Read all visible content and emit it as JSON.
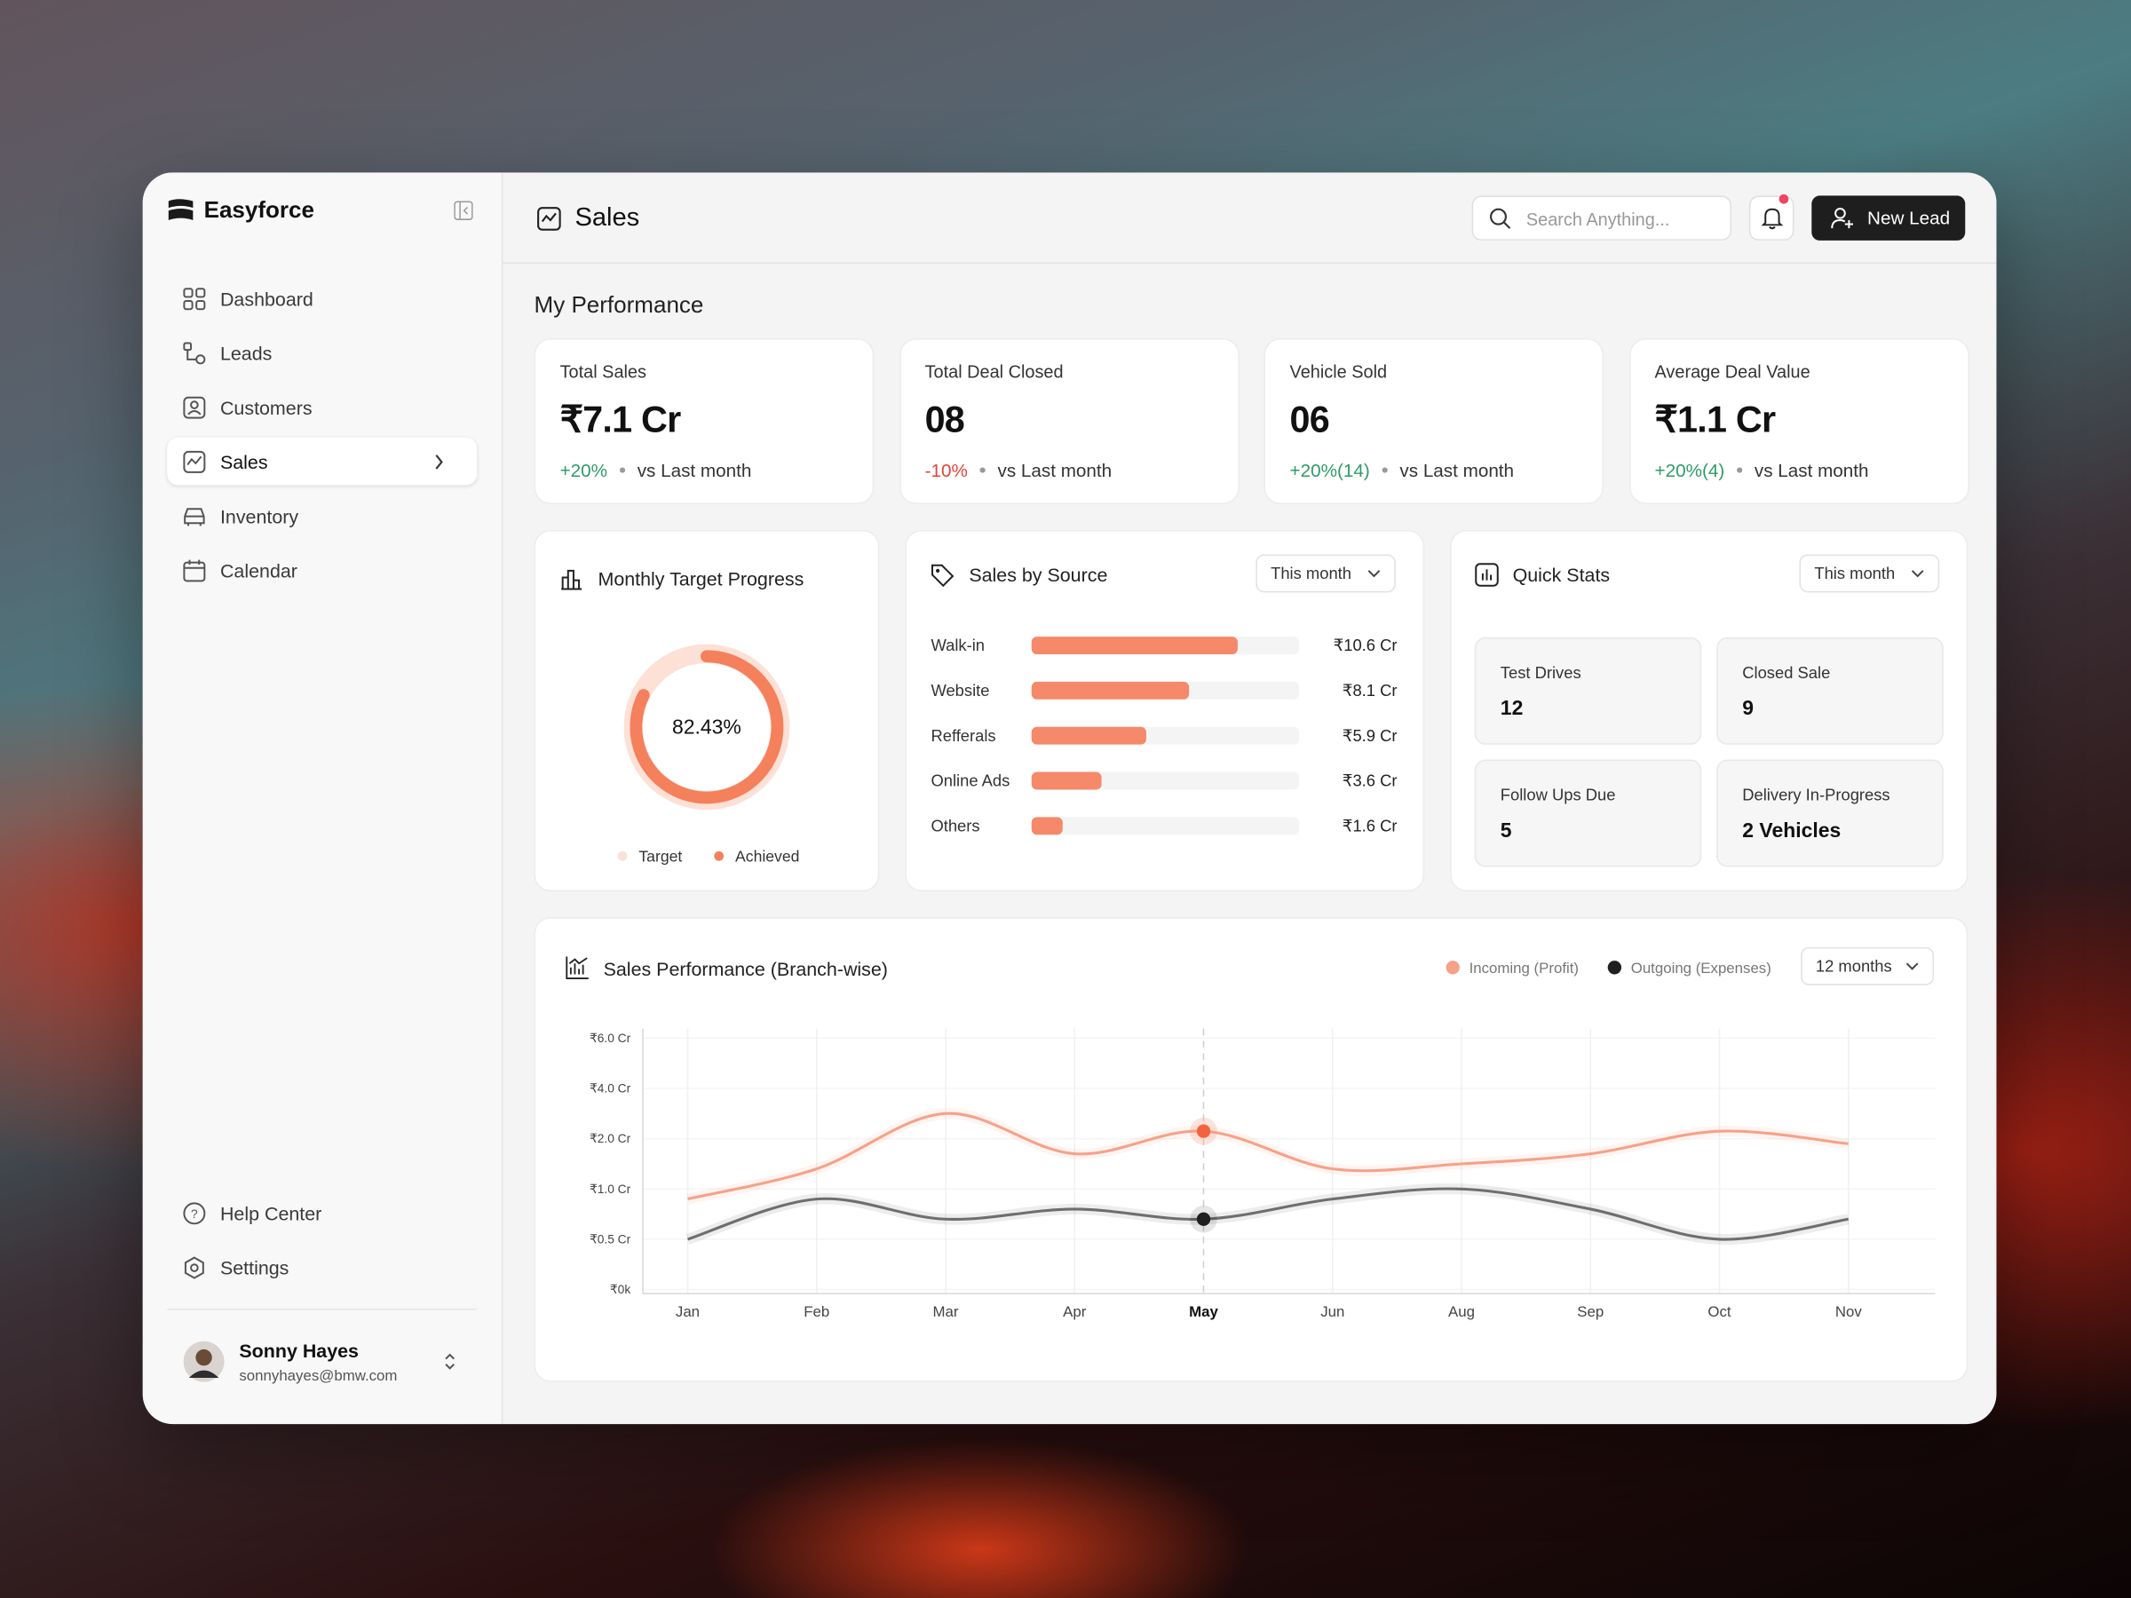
{
  "sidebar": {
    "brand": "Easyforce",
    "nav": [
      {
        "label": "Dashboard"
      },
      {
        "label": "Leads"
      },
      {
        "label": "Customers"
      },
      {
        "label": "Sales",
        "active": true
      },
      {
        "label": "Inventory"
      },
      {
        "label": "Calendar"
      }
    ],
    "footer_nav": [
      "Help Center",
      "Settings"
    ],
    "user": {
      "name": "Sonny Hayes",
      "email": "sonnyhayes@bmw.com"
    }
  },
  "header": {
    "title": "Sales",
    "search_placeholder": "Search Anything...",
    "new_lead": "New Lead"
  },
  "performance": {
    "title": "My Performance",
    "cards": [
      {
        "label": "Total Sales",
        "value": "₹7.1 Cr",
        "change": "+20%",
        "note": "vs Last month"
      },
      {
        "label": "Total Deal Closed",
        "value": "08",
        "change": "-10%",
        "note": "vs Last month"
      },
      {
        "label": "Vehicle Sold",
        "value": "06",
        "change": "+20%(14)",
        "note": "vs Last month"
      },
      {
        "label": "Average Deal Value",
        "value": "₹1.1 Cr",
        "change": "+20%(4)",
        "note": "vs Last month"
      }
    ]
  },
  "target": {
    "title": "Monthly Target Progress",
    "chart_data": {
      "type": "donut",
      "value": 82.43,
      "value_label": "82.43%",
      "legend": [
        "Target",
        "Achieved"
      ],
      "colors": [
        "#fde0d6",
        "#f4805c"
      ]
    }
  },
  "source": {
    "title": "Sales by Source",
    "filter": "This month",
    "chart_data": {
      "type": "bar",
      "categories": [
        "Walk-in",
        "Website",
        "Refferals",
        "Online Ads",
        "Others"
      ],
      "values": [
        10.6,
        8.1,
        5.9,
        3.6,
        1.6
      ],
      "value_labels": [
        "₹10.6 Cr",
        "₹8.1 Cr",
        "₹5.9 Cr",
        "₹3.6 Cr",
        "₹1.6 Cr"
      ],
      "color": "#f5896a"
    }
  },
  "quick_stats": {
    "title": "Quick Stats",
    "filter": "This month",
    "items": [
      {
        "label": "Test Drives",
        "value": "12"
      },
      {
        "label": "Closed Sale",
        "value": "9"
      },
      {
        "label": "Follow Ups Due",
        "value": "5"
      },
      {
        "label": "Delivery In-Progress",
        "value": "2 Vehicles"
      }
    ]
  },
  "sales_performance": {
    "title": "Sales Performance (Branch-wise)",
    "filter": "12 months",
    "chart_data": {
      "type": "line",
      "categories": [
        "Jan",
        "Feb",
        "Mar",
        "Apr",
        "May",
        "Jun",
        "Aug",
        "Sep",
        "Oct",
        "Nov"
      ],
      "series": [
        {
          "name": "Incoming (Profit)",
          "color": "#f6a188",
          "values": [
            0.9,
            1.4,
            3.0,
            1.7,
            2.3,
            1.4,
            1.5,
            1.7,
            2.3,
            1.9
          ]
        },
        {
          "name": "Outgoing (Expenses)",
          "color": "#6e6e6e",
          "values": [
            0.5,
            0.9,
            0.7,
            0.8,
            0.7,
            0.9,
            1.0,
            0.8,
            0.5,
            0.7
          ]
        }
      ],
      "ylim": [
        0,
        6
      ],
      "yticks": [
        {
          "value": 0,
          "label": "₹0k"
        },
        {
          "value": 0.5,
          "label": "₹0.5 Cr"
        },
        {
          "value": 1,
          "label": "₹1.0 Cr"
        },
        {
          "value": 2,
          "label": "₹2.0 Cr"
        },
        {
          "value": 4,
          "label": "₹4.0 Cr"
        },
        {
          "value": 6,
          "label": "₹6.0 Cr"
        }
      ],
      "highlight": "May",
      "grid": true
    }
  }
}
